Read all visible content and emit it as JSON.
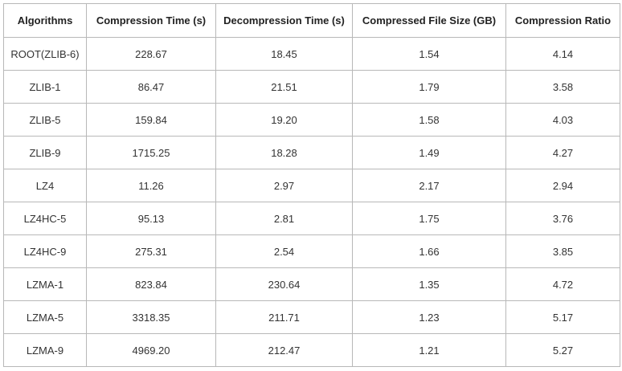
{
  "table": {
    "header": [
      "Algorithms",
      "Compression Time (s)",
      "Decompression Time (s)",
      "Compressed File Size (GB)",
      "Compression Ratio"
    ],
    "rows": [
      [
        "ROOT(ZLIB-6)",
        "228.67",
        "18.45",
        "1.54",
        "4.14"
      ],
      [
        "ZLIB-1",
        "86.47",
        "21.51",
        "1.79",
        "3.58"
      ],
      [
        "ZLIB-5",
        "159.84",
        "19.20",
        "1.58",
        "4.03"
      ],
      [
        "ZLIB-9",
        "1715.25",
        "18.28",
        "1.49",
        "4.27"
      ],
      [
        "LZ4",
        "11.26",
        "2.97",
        "2.17",
        "2.94"
      ],
      [
        "LZ4HC-5",
        "95.13",
        "2.81",
        "1.75",
        "3.76"
      ],
      [
        "LZ4HC-9",
        "275.31",
        "2.54",
        "1.66",
        "3.85"
      ],
      [
        "LZMA-1",
        "823.84",
        "230.64",
        "1.35",
        "4.72"
      ],
      [
        "LZMA-5",
        "3318.35",
        "211.71",
        "1.23",
        "5.17"
      ],
      [
        "LZMA-9",
        "4969.20",
        "212.47",
        "1.21",
        "5.27"
      ]
    ]
  }
}
